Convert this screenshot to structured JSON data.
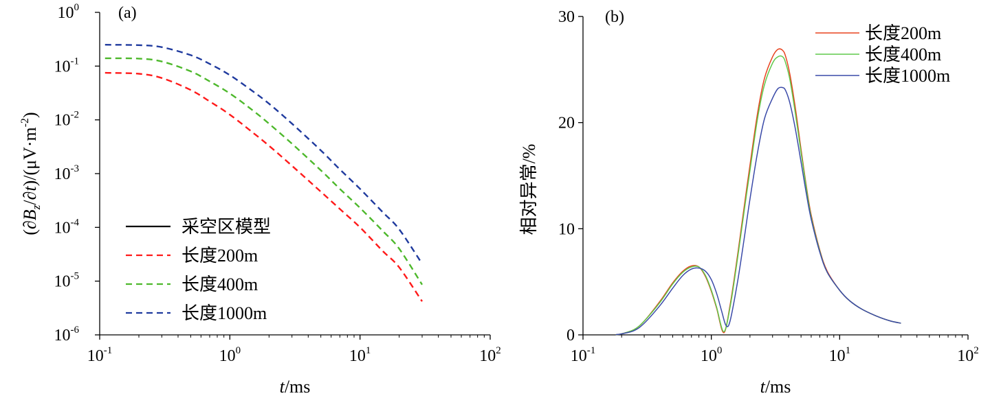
{
  "chart_data": [
    {
      "id": "a",
      "type": "line",
      "panel_label": "(a)",
      "x_scale": "log",
      "y_scale": "log",
      "xlim": [
        0.1,
        100
      ],
      "ylim": [
        1e-06,
        1
      ],
      "xlabel": {
        "italic": "t",
        "rest": "/ms"
      },
      "ylabel": {
        "p1": "(∂",
        "b": "B",
        "z": "z",
        "p2": "/∂",
        "t": "t",
        "p3": ")/(μV·m",
        "sup": "-2",
        "p4": ")"
      },
      "x_ticks": [
        {
          "value": 0.1,
          "base": "10",
          "exp": "-1"
        },
        {
          "value": 1,
          "base": "10",
          "exp": "0"
        },
        {
          "value": 10,
          "base": "10",
          "exp": "1"
        },
        {
          "value": 100,
          "base": "10",
          "exp": "2"
        }
      ],
      "y_ticks": [
        {
          "value": 1,
          "base": "10",
          "exp": "0"
        },
        {
          "value": 0.1,
          "base": "10",
          "exp": "-1"
        },
        {
          "value": 0.01,
          "base": "10",
          "exp": "-2"
        },
        {
          "value": 0.001,
          "base": "10",
          "exp": "-3"
        },
        {
          "value": 0.0001,
          "base": "10",
          "exp": "-4"
        },
        {
          "value": 1e-05,
          "base": "10",
          "exp": "-5"
        },
        {
          "value": 1e-06,
          "base": "10",
          "exp": "-6"
        }
      ],
      "legend_position": "lower-left",
      "series": [
        {
          "name": "采空区模型",
          "color": "#000000",
          "dash": "solid",
          "x": [],
          "y": []
        },
        {
          "name": "长度200m",
          "color": "#ff1a1a",
          "dash": "dashed",
          "x": [
            0.11,
            0.2,
            0.3,
            0.5,
            0.7,
            1,
            1.5,
            2,
            3,
            5,
            7,
            10,
            15,
            20,
            30
          ],
          "y": [
            0.075,
            0.072,
            0.06,
            0.036,
            0.022,
            0.0125,
            0.0058,
            0.0033,
            0.0014,
            0.00046,
            0.00022,
            0.0001,
            3.6e-05,
            1.8e-05,
            4.2e-06
          ]
        },
        {
          "name": "长度400m",
          "color": "#4db82b",
          "dash": "dashed",
          "x": [
            0.11,
            0.2,
            0.3,
            0.5,
            0.7,
            1,
            1.5,
            2,
            3,
            5,
            7,
            10,
            15,
            20,
            30
          ],
          "y": [
            0.14,
            0.138,
            0.122,
            0.08,
            0.052,
            0.031,
            0.015,
            0.0085,
            0.0036,
            0.00115,
            0.00052,
            0.00023,
            8.5e-05,
            4e-05,
            8.6e-06
          ]
        },
        {
          "name": "长度1000m",
          "color": "#1f3a9e",
          "dash": "dashed",
          "x": [
            0.11,
            0.2,
            0.3,
            0.5,
            0.7,
            1,
            1.5,
            2,
            3,
            5,
            7,
            10,
            15,
            20,
            30
          ],
          "y": [
            0.25,
            0.245,
            0.225,
            0.16,
            0.11,
            0.068,
            0.034,
            0.02,
            0.0085,
            0.0027,
            0.0012,
            0.00052,
            0.00019,
            9.2e-05,
            2.1e-05
          ]
        }
      ]
    },
    {
      "id": "b",
      "type": "line",
      "panel_label": "(b)",
      "x_scale": "log",
      "y_scale": "linear",
      "xlim": [
        0.1,
        100
      ],
      "ylim": [
        0,
        30
      ],
      "xlabel": {
        "italic": "t",
        "rest": "/ms"
      },
      "ylabel": "相对异常/%",
      "x_ticks": [
        {
          "value": 0.1,
          "base": "10",
          "exp": "-1"
        },
        {
          "value": 1,
          "base": "10",
          "exp": "0"
        },
        {
          "value": 10,
          "base": "10",
          "exp": "1"
        },
        {
          "value": 100,
          "base": "10",
          "exp": "2"
        }
      ],
      "y_ticks": [
        {
          "value": 0,
          "label": "0"
        },
        {
          "value": 10,
          "label": "10"
        },
        {
          "value": 20,
          "label": "20"
        },
        {
          "value": 30,
          "label": "30"
        }
      ],
      "legend_position": "top-right",
      "series": [
        {
          "name": "长度200m",
          "color": "#e8421e",
          "x": [
            0.18,
            0.2,
            0.25,
            0.3,
            0.4,
            0.5,
            0.6,
            0.7,
            0.8,
            0.9,
            1.0,
            1.1,
            1.25,
            1.4,
            1.6,
            1.8,
            2.0,
            2.3,
            2.6,
            3.0,
            3.3,
            3.6,
            3.8,
            4.1,
            4.5,
            5.0,
            5.5,
            6.0,
            7.0,
            8.0,
            10.0,
            12.0,
            15.0,
            20.0,
            25.0,
            30.0
          ],
          "y": [
            0.02,
            0.1,
            0.5,
            1.3,
            3.2,
            4.9,
            6.0,
            6.5,
            6.4,
            5.5,
            4.1,
            2.5,
            0.2,
            2.8,
            7.5,
            12.0,
            16.0,
            21.0,
            24.2,
            26.2,
            26.9,
            26.8,
            26.2,
            24.5,
            21.5,
            17.5,
            14.0,
            11.3,
            8.0,
            6.0,
            4.2,
            3.2,
            2.4,
            1.7,
            1.3,
            1.1
          ]
        },
        {
          "name": "长度400m",
          "color": "#5ec84a",
          "x": [
            0.18,
            0.2,
            0.25,
            0.3,
            0.4,
            0.5,
            0.6,
            0.7,
            0.8,
            0.9,
            1.0,
            1.1,
            1.25,
            1.4,
            1.6,
            1.8,
            2.0,
            2.3,
            2.6,
            3.0,
            3.3,
            3.6,
            3.8,
            4.1,
            4.5,
            5.0,
            5.5,
            6.0,
            7.0,
            8.0,
            10.0,
            12.0,
            15.0,
            20.0,
            25.0,
            30.0
          ],
          "y": [
            0.02,
            0.1,
            0.5,
            1.3,
            3.1,
            4.8,
            5.9,
            6.4,
            6.4,
            5.6,
            4.2,
            2.6,
            0.3,
            2.6,
            7.2,
            11.6,
            15.5,
            20.5,
            23.6,
            25.6,
            26.2,
            26.2,
            25.6,
            24.0,
            21.0,
            17.2,
            13.8,
            11.1,
            7.9,
            5.9,
            4.2,
            3.2,
            2.4,
            1.7,
            1.3,
            1.1
          ]
        },
        {
          "name": "长度1000m",
          "color": "#3a4aa8",
          "x": [
            0.18,
            0.2,
            0.25,
            0.3,
            0.4,
            0.5,
            0.6,
            0.7,
            0.8,
            0.9,
            1.0,
            1.1,
            1.2,
            1.3,
            1.4,
            1.6,
            1.8,
            2.0,
            2.3,
            2.6,
            3.0,
            3.3,
            3.6,
            3.8,
            4.1,
            4.5,
            5.0,
            5.5,
            6.0,
            7.0,
            8.0,
            10.0,
            12.0,
            15.0,
            20.0,
            25.0,
            30.0
          ],
          "y": [
            0.02,
            0.1,
            0.4,
            1.1,
            2.8,
            4.4,
            5.6,
            6.2,
            6.3,
            6.0,
            5.2,
            3.9,
            2.3,
            0.9,
            1.3,
            5.0,
            9.0,
            12.8,
            17.3,
            20.4,
            22.3,
            23.2,
            23.3,
            23.0,
            21.8,
            19.5,
            16.3,
            13.3,
            10.9,
            7.8,
            5.9,
            4.2,
            3.2,
            2.4,
            1.7,
            1.3,
            1.1
          ]
        }
      ]
    }
  ]
}
